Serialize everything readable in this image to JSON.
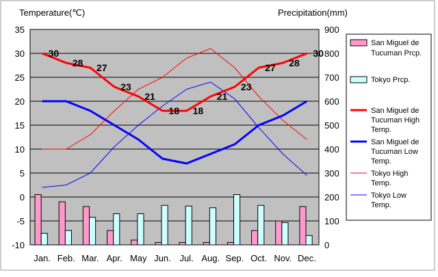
{
  "chart_data": {
    "type": "bar+line",
    "categories": [
      "Jan.",
      "Feb.",
      "Mar.",
      "Apr.",
      "May",
      "Jun.",
      "Jul.",
      "Aug.",
      "Sep.",
      "Oct.",
      "Nov.",
      "Dec."
    ],
    "left_axis": {
      "title": "Temperature(℃)",
      "min": -10,
      "max": 35,
      "step": 5
    },
    "right_axis": {
      "title": "Precipitation(mm)",
      "min": 0,
      "max": 900,
      "step": 100
    },
    "precipitation_series": [
      {
        "name_lines": [
          "San Miguel de",
          "Tucuman Prcp."
        ],
        "color": "#ff99cc",
        "values": [
          210,
          180,
          160,
          60,
          20,
          10,
          10,
          10,
          10,
          60,
          100,
          160
        ]
      },
      {
        "name_lines": [
          "Tokyo Prcp."
        ],
        "color": "#ccffff",
        "values": [
          48,
          60,
          115,
          130,
          130,
          165,
          162,
          155,
          210,
          165,
          93,
          39
        ]
      }
    ],
    "temperature_series": [
      {
        "name_lines": [
          "San Miguel de",
          "Tucuman High",
          "Temp."
        ],
        "color": "#ff0000",
        "width": 3,
        "values": [
          30,
          28,
          27,
          23,
          21,
          18,
          18,
          21,
          23,
          27,
          28,
          30
        ],
        "labels": [
          "30",
          "28",
          "27",
          "23",
          "21",
          "18",
          "18",
          "21",
          "23",
          "27",
          "28",
          "30"
        ]
      },
      {
        "name_lines": [
          "San Miguel de",
          "Tucuman Low",
          "Temp."
        ],
        "color": "#0000ff",
        "width": 3,
        "values": [
          20,
          20,
          18,
          15,
          12,
          8,
          7,
          9,
          11,
          15,
          17,
          20
        ]
      },
      {
        "name_lines": [
          "Tokyo High",
          "Temp."
        ],
        "color": "#ff0000",
        "width": 1,
        "values": [
          10,
          10,
          13,
          18,
          22.5,
          25,
          29,
          31,
          27,
          21,
          16,
          12
        ]
      },
      {
        "name_lines": [
          "Tokyo Low",
          "Temp."
        ],
        "color": "#0000ff",
        "width": 1,
        "values": [
          2,
          2.5,
          5,
          10.5,
          15,
          19,
          22.5,
          24,
          20.5,
          14.5,
          9,
          4.5
        ]
      }
    ],
    "grid": true,
    "legend": "right"
  }
}
